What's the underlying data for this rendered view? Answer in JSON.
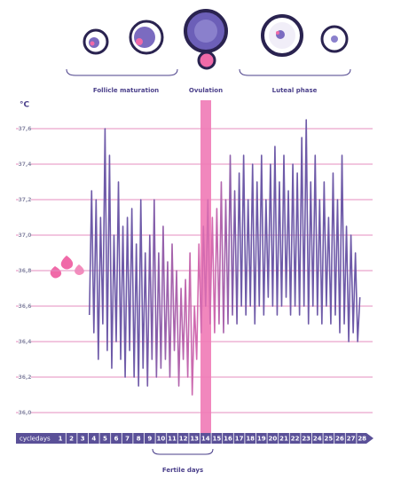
{
  "chart_data": {
    "type": "line",
    "y_unit": "°C",
    "x_axis_label": "cycledays",
    "phases": [
      "Follicle maturation",
      "Ovulation",
      "Luteal phase"
    ],
    "fertile_label": "Fertile days",
    "xlim": [
      0.5,
      28.5
    ],
    "xticks": [
      1,
      2,
      3,
      4,
      5,
      6,
      7,
      8,
      9,
      10,
      11,
      12,
      13,
      14,
      15,
      16,
      17,
      18,
      19,
      20,
      21,
      22,
      23,
      24,
      25,
      26,
      27,
      28
    ],
    "ylim": [
      35.9,
      37.75
    ],
    "yticks": [
      {
        "value": 37.6,
        "label": "37,6"
      },
      {
        "value": 37.4,
        "label": "37,4"
      },
      {
        "value": 37.2,
        "label": "37,2"
      },
      {
        "value": 37.0,
        "label": "37,0"
      },
      {
        "value": 36.8,
        "label": "36,8"
      },
      {
        "value": 36.6,
        "label": "36,6"
      },
      {
        "value": 36.4,
        "label": "36,4"
      },
      {
        "value": 36.2,
        "label": "36,2"
      },
      {
        "value": 36.0,
        "label": "36,0"
      }
    ],
    "grid": true,
    "grid_color": "#e48cbf",
    "series": [
      {
        "color": "#6e5aa8",
        "x": [
          3.6,
          3.8,
          4,
          4.2,
          4.4,
          4.6,
          4.8,
          5,
          5.2,
          5.4,
          5.6,
          5.8,
          6,
          6.2,
          6.4,
          6.6,
          6.8,
          7,
          7.2,
          7.4,
          7.6,
          7.8,
          8,
          8.2,
          8.4,
          8.6,
          8.8,
          9,
          9.2,
          9.4,
          9.6,
          9.8,
          10,
          10.2,
          10.4,
          10.6,
          10.8,
          11,
          11.2,
          11.4,
          11.6,
          11.8,
          12,
          12.2,
          12.4,
          12.6,
          12.8,
          13,
          13.2,
          13.4,
          13.6,
          13.8,
          14,
          14.2,
          14.4,
          14.6,
          14.8,
          15,
          15.2,
          15.4,
          15.6,
          15.8,
          16,
          16.2,
          16.4,
          16.6,
          16.8,
          17,
          17.2,
          17.4,
          17.6,
          17.8,
          18,
          18.2,
          18.4,
          18.6,
          18.8,
          19,
          19.2,
          19.4,
          19.6,
          19.8,
          20,
          20.2,
          20.4,
          20.6,
          20.8,
          21,
          21.2,
          21.4,
          21.6,
          21.8,
          22,
          22.2,
          22.4,
          22.6,
          22.8,
          23,
          23.2,
          23.4,
          23.6,
          23.8,
          24,
          24.2,
          24.4,
          24.6,
          24.8,
          25,
          25.2,
          25.4,
          25.6,
          25.8,
          26,
          26.2,
          26.4,
          26.6,
          26.8,
          27,
          27.2,
          27.4,
          27.6,
          27.8
        ],
        "values": [
          36.55,
          37.25,
          36.45,
          37.2,
          36.3,
          37.1,
          36.5,
          37.6,
          36.35,
          37.45,
          36.25,
          37.0,
          36.4,
          37.3,
          36.3,
          37.05,
          36.2,
          37.1,
          36.35,
          37.15,
          36.2,
          36.95,
          36.15,
          37.2,
          36.25,
          36.9,
          36.15,
          37.0,
          36.3,
          37.2,
          36.2,
          36.9,
          36.25,
          37.05,
          36.3,
          36.85,
          36.2,
          36.95,
          36.35,
          36.8,
          36.15,
          36.7,
          36.3,
          36.75,
          36.2,
          36.9,
          36.1,
          36.6,
          36.3,
          36.95,
          36.45,
          37.05,
          36.6,
          37.2,
          36.5,
          37.1,
          36.45,
          37.15,
          36.5,
          37.3,
          36.45,
          37.2,
          36.5,
          37.45,
          36.55,
          37.25,
          36.5,
          37.35,
          36.6,
          37.45,
          36.55,
          37.2,
          36.6,
          37.4,
          36.5,
          37.3,
          36.6,
          37.45,
          36.55,
          37.2,
          36.65,
          37.4,
          36.6,
          37.5,
          36.55,
          37.3,
          36.6,
          37.45,
          36.65,
          37.25,
          36.55,
          37.4,
          36.6,
          37.35,
          36.55,
          37.55,
          36.6,
          37.65,
          36.5,
          37.3,
          36.6,
          37.45,
          36.55,
          37.2,
          36.5,
          37.3,
          36.6,
          37.1,
          36.5,
          37.35,
          36.55,
          37.2,
          36.45,
          37.45,
          36.5,
          37.05,
          36.4,
          37.0,
          36.45,
          36.9,
          36.4,
          36.65
        ]
      }
    ]
  }
}
